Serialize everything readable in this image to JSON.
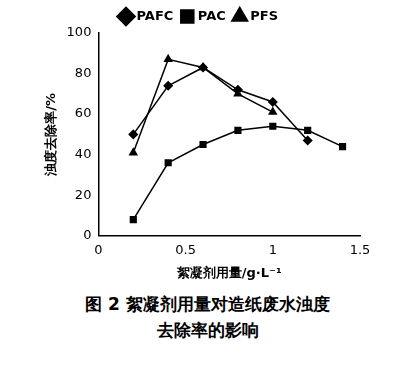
{
  "chart_data": {
    "type": "line",
    "caption": "图 2 絮凝剂用量对造纸废水浊度去除率的影响",
    "x_label": "絮凝剂用量/g·L⁻¹",
    "y_label": "浊度去除率/%",
    "x": [
      0.2,
      0.4,
      0.6,
      0.8,
      1.0,
      1.2,
      1.4
    ],
    "series": [
      {
        "name": "PAFC",
        "color": "#000000",
        "marker": "diamond",
        "values": [
          50,
          74,
          83,
          72,
          66,
          47,
          null
        ]
      },
      {
        "name": "PAC",
        "color": "#000000",
        "marker": "square",
        "values": [
          8,
          36,
          45,
          52,
          54,
          52,
          44
        ]
      },
      {
        "name": "PFS",
        "color": "#000000",
        "marker": "triangle",
        "values": [
          41,
          87,
          83,
          70,
          61,
          null,
          null
        ]
      }
    ],
    "xlim": [
      0,
      1.5
    ],
    "xticks": [
      0,
      0.5,
      1,
      1.5
    ],
    "ylim": [
      0,
      100
    ],
    "yticks": [
      0,
      20,
      40,
      60,
      80,
      100
    ],
    "grid": false,
    "legend": "top"
  }
}
